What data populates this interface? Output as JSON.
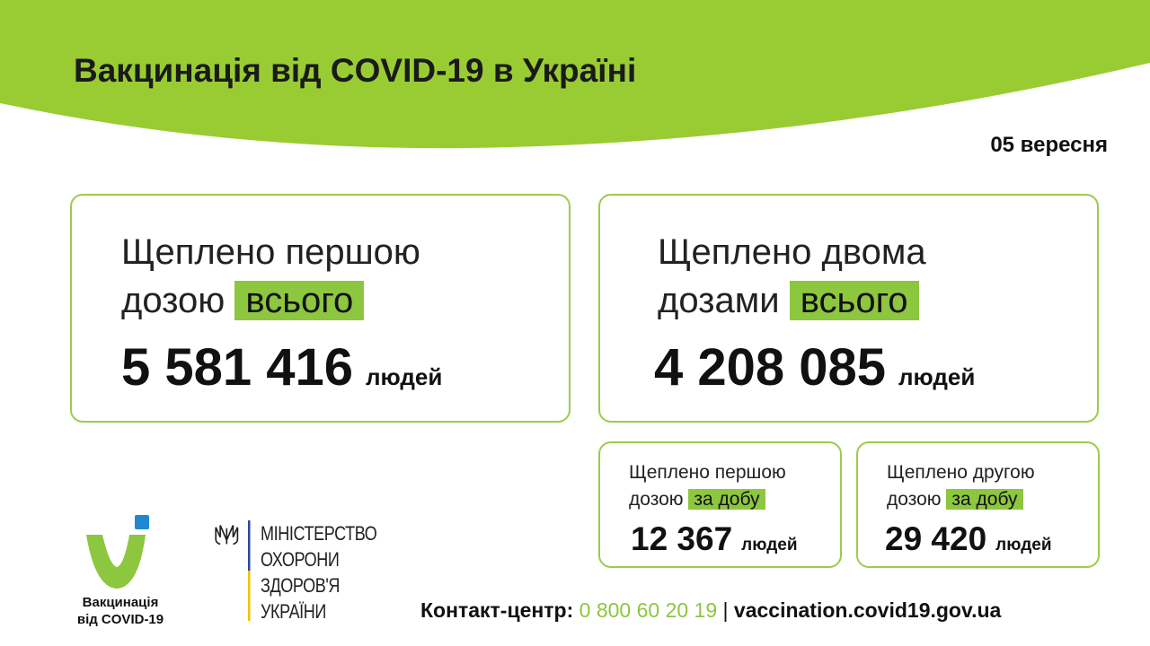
{
  "header": {
    "title": "Вакцинація від COVID-19 в Україні",
    "date": "05 вересня"
  },
  "colors": {
    "accent": "#8dc63f",
    "header_bg": "#99cc33",
    "blue": "#1e88d0"
  },
  "total_first": {
    "line1": "Щеплено першою",
    "line2": "дозою",
    "highlight": "всього",
    "value": "5 581 416",
    "unit": "людей"
  },
  "total_second": {
    "line1": "Щеплено двома",
    "line2": "дозами",
    "highlight": "всього",
    "value": "4 208 085",
    "unit": "людей"
  },
  "daily_first": {
    "line1": "Щеплено першою",
    "line2": "дозою",
    "highlight": "за добу",
    "value": "12 367",
    "unit": "людей"
  },
  "daily_second": {
    "line1": "Щеплено другою",
    "line2": "дозою",
    "highlight": "за добу",
    "value": "29 420",
    "unit": "людей"
  },
  "logo": {
    "line1": "Вакцинація",
    "line2": "від COVID-19"
  },
  "ministry": {
    "lines": [
      "МІНІСТЕРСТВО",
      "ОХОРОНИ",
      "ЗДОРОВ'Я",
      "УКРАЇНИ"
    ],
    "icon": "trident-icon"
  },
  "footer": {
    "contact_label": "Контакт-центр:",
    "phone": "0 800 60 20 19",
    "separator": "|",
    "website": "vaccination.covid19.gov.ua"
  }
}
